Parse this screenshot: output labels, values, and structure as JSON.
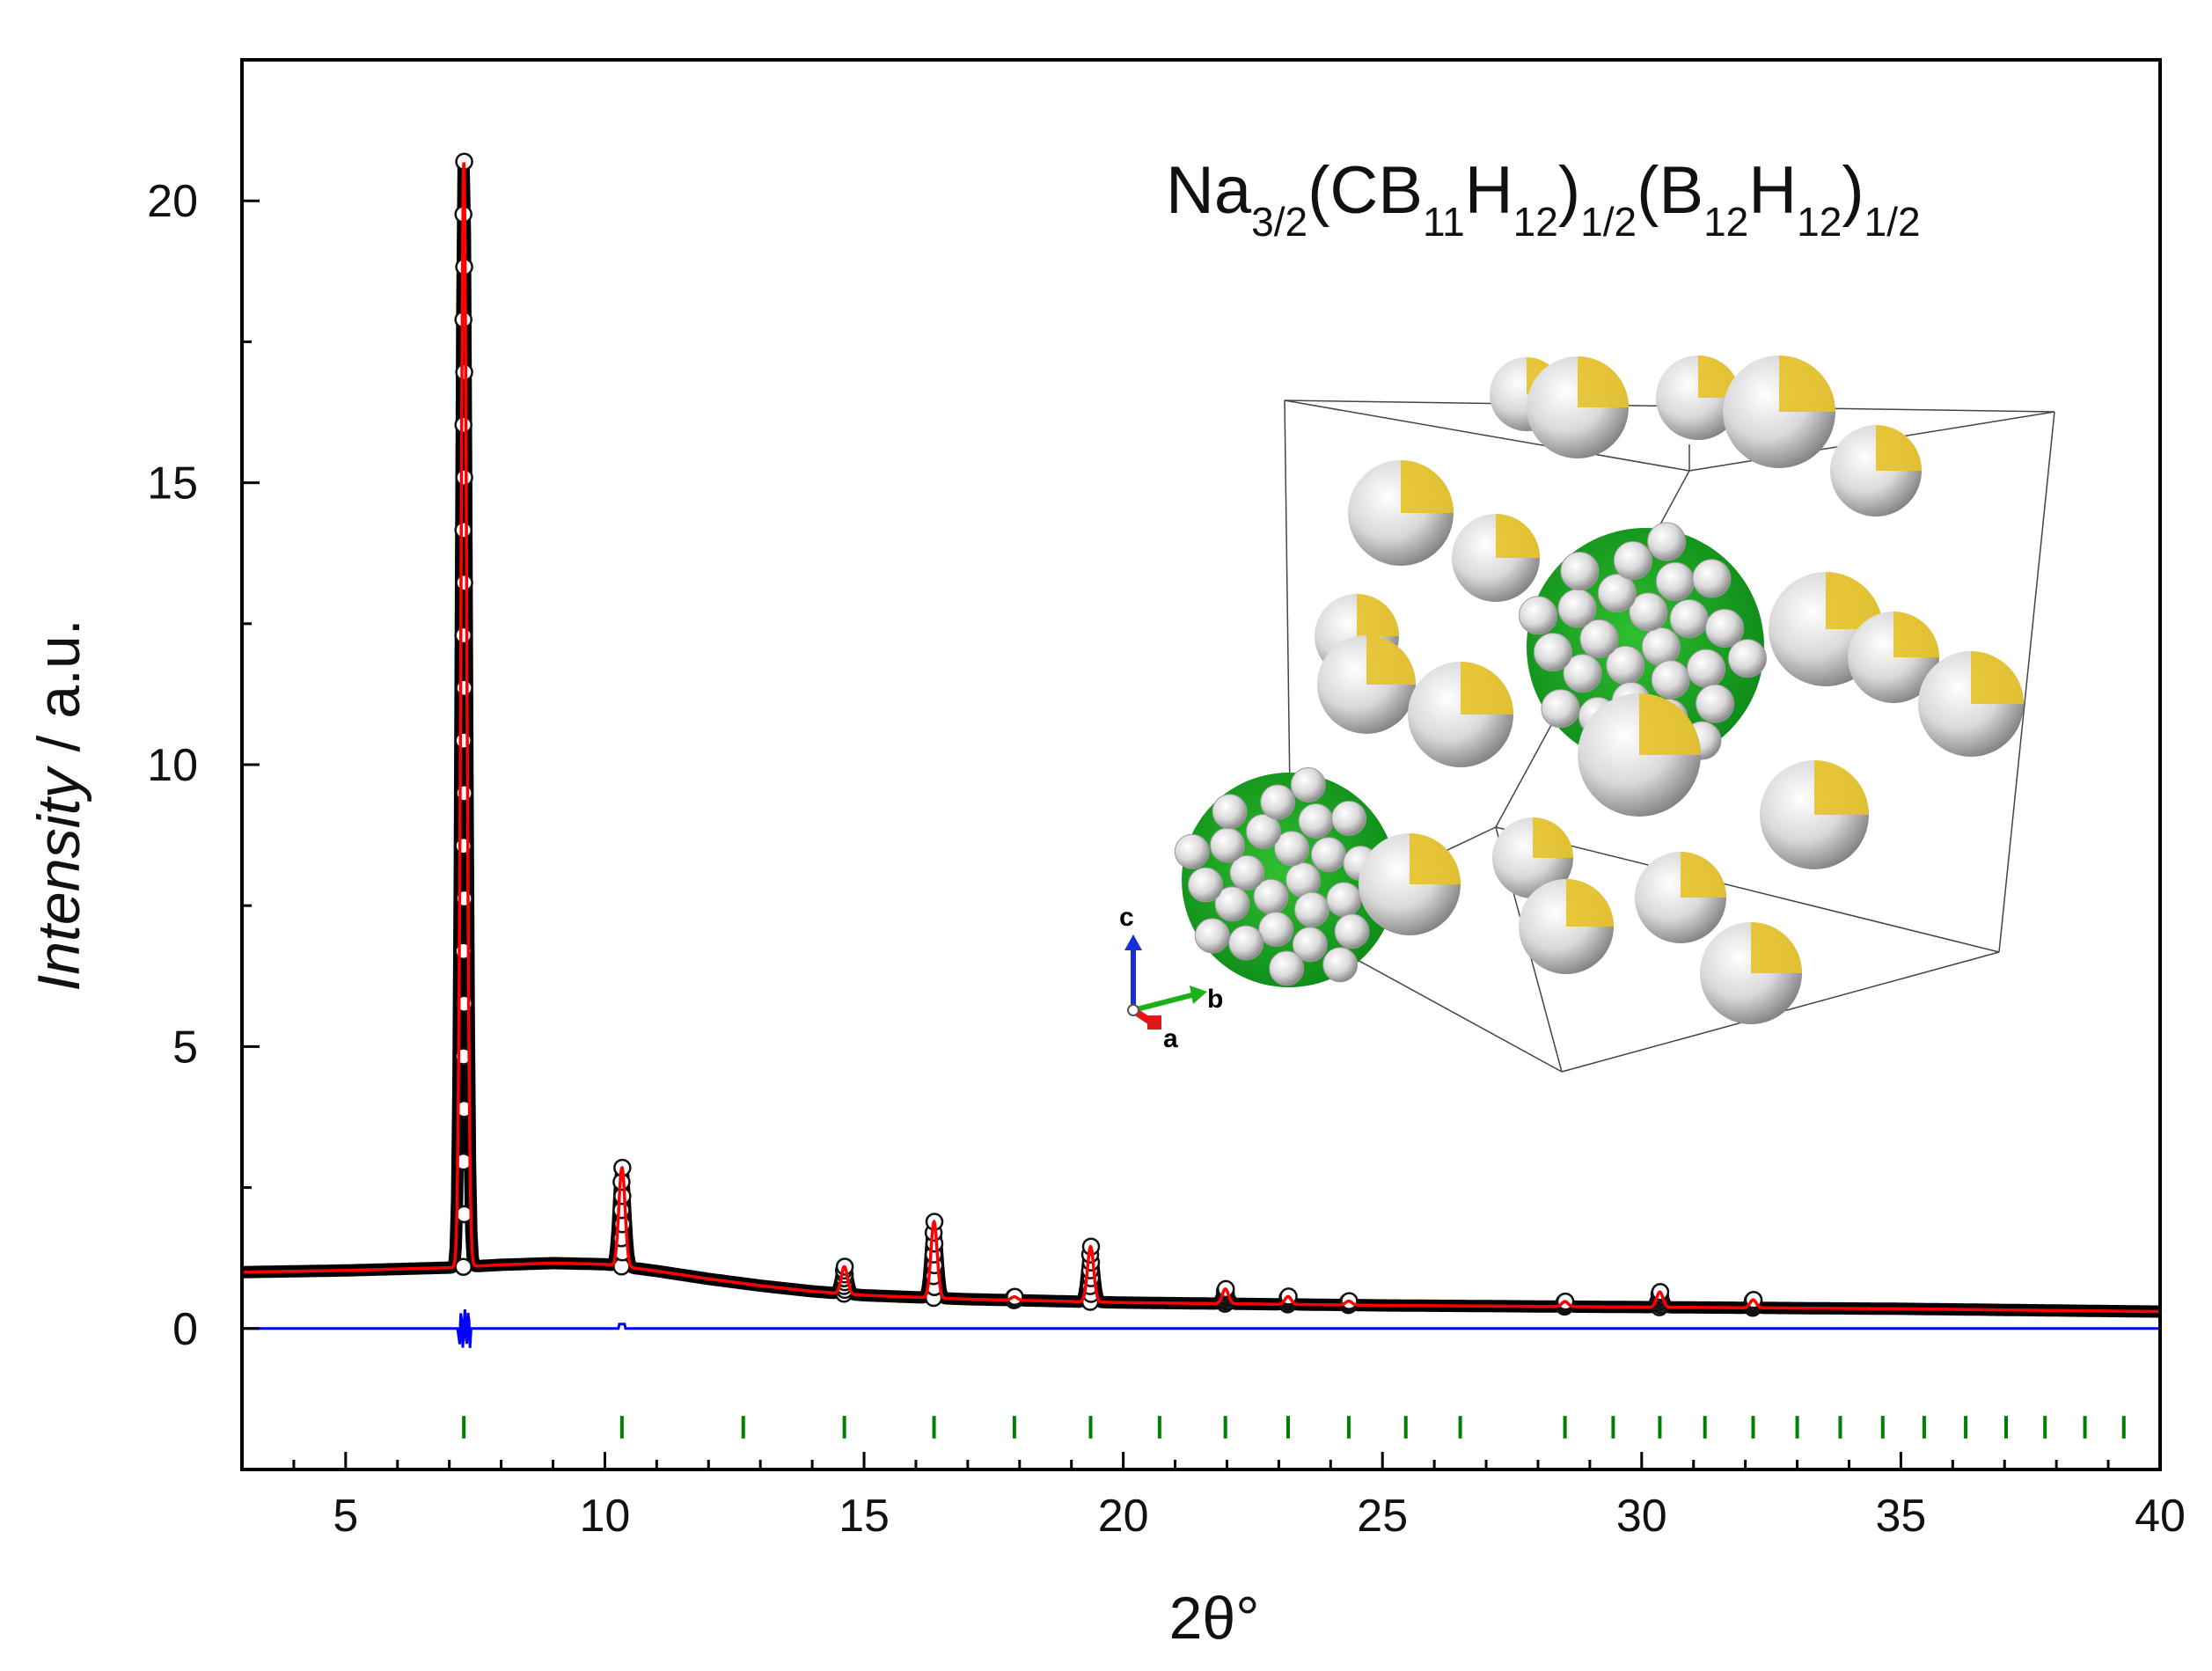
{
  "chart_data": {
    "type": "line",
    "xlabel": "2θ°",
    "ylabel_italic": "Intensity",
    "ylabel_rest": " / a.u.",
    "xlim": [
      3,
      40
    ],
    "ylim": [
      -2.5,
      22.5
    ],
    "xticks": [
      5,
      10,
      15,
      20,
      25,
      30,
      35,
      40
    ],
    "yticks": [
      0,
      5,
      10,
      15,
      20
    ],
    "grid": false,
    "annotation": {
      "base1": "Na",
      "sub1": "3/2",
      "base2": "(CB",
      "sub2": "11",
      "base3": "H",
      "sub3": "12",
      "base4": ")",
      "sub4": "1/2",
      "base5": "(B",
      "sub5": "12",
      "base6": "H",
      "sub6": "12",
      "base7": ")",
      "sub7": "1/2"
    },
    "inset_axes": {
      "c": "c",
      "b": "b",
      "a": "a"
    },
    "background": {
      "x": [
        3,
        5,
        7,
        8,
        9,
        10,
        11,
        12,
        13,
        14,
        15,
        17,
        20,
        25,
        30,
        35,
        40
      ],
      "y": [
        1.0,
        1.03,
        1.08,
        1.13,
        1.16,
        1.14,
        1.02,
        0.88,
        0.76,
        0.66,
        0.59,
        0.52,
        0.46,
        0.41,
        0.38,
        0.35,
        0.3
      ]
    },
    "peaks": [
      {
        "x": 7.28,
        "height": 19.6,
        "width": 0.055
      },
      {
        "x": 10.33,
        "height": 1.75,
        "width": 0.06
      },
      {
        "x": 14.62,
        "height": 0.48,
        "width": 0.06
      },
      {
        "x": 16.35,
        "height": 1.35,
        "width": 0.06
      },
      {
        "x": 17.9,
        "height": 0.06,
        "width": 0.06
      },
      {
        "x": 19.37,
        "height": 0.98,
        "width": 0.06
      },
      {
        "x": 21.97,
        "height": 0.26,
        "width": 0.06
      },
      {
        "x": 23.18,
        "height": 0.14,
        "width": 0.06
      },
      {
        "x": 24.35,
        "height": 0.07,
        "width": 0.06
      },
      {
        "x": 28.52,
        "height": 0.09,
        "width": 0.06
      },
      {
        "x": 30.35,
        "height": 0.27,
        "width": 0.06
      },
      {
        "x": 32.15,
        "height": 0.14,
        "width": 0.06
      }
    ],
    "reflections": [
      7.28,
      10.33,
      12.67,
      14.62,
      16.35,
      17.9,
      19.37,
      20.7,
      21.97,
      23.18,
      24.35,
      25.45,
      26.5,
      28.52,
      29.45,
      30.35,
      31.22,
      32.15,
      33.0,
      33.83,
      34.65,
      35.45,
      36.25,
      37.03,
      37.78,
      38.55,
      39.3
    ],
    "reflection_y": [
      -1.55,
      -1.95
    ],
    "series": [
      {
        "role": "observed",
        "color": "#000000",
        "marker": "open-circle"
      },
      {
        "role": "calculated",
        "color": "#ff0000"
      },
      {
        "role": "difference",
        "color": "#0000ff",
        "offset": 0
      },
      {
        "role": "reflections",
        "color": "#008000"
      }
    ]
  }
}
